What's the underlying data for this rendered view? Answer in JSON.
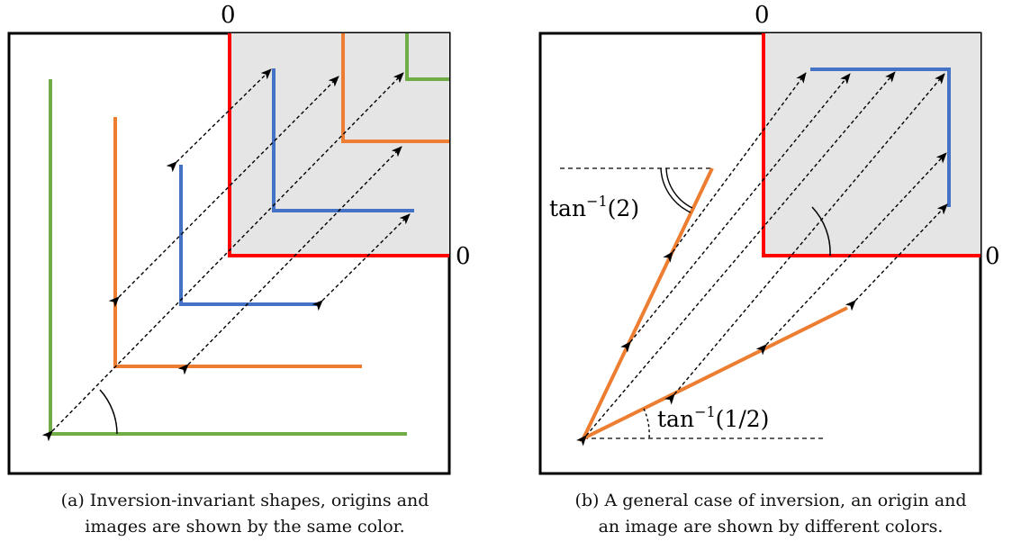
{
  "colors": {
    "frame": "#000000",
    "axes": "#ff0000",
    "quadrant_fill": "#e5e5e5",
    "green": "#70ad47",
    "orange": "#ed7d31",
    "blue": "#4472c4",
    "arrows": "#000000"
  },
  "panel_a": {
    "top_zero_label": "0",
    "right_zero_label": "0",
    "caption_line1": "(a)  Inversion-invariant shapes, origins and",
    "caption_line2": "images are shown by the same color."
  },
  "panel_b": {
    "top_zero_label": "0",
    "right_zero_label": "0",
    "angle_steep_label": "tan",
    "angle_steep_exp": "−1",
    "angle_steep_arg": "(2)",
    "angle_shallow_label": "tan",
    "angle_shallow_exp": "−1",
    "angle_shallow_arg": "(1/2)",
    "caption_line1": "(b)  A general case of inversion, an origin and",
    "caption_line2": "an image are shown by different colors."
  }
}
